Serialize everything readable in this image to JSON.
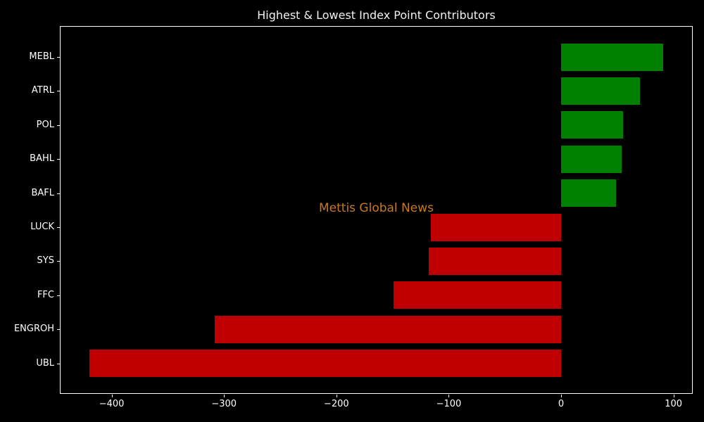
{
  "chart_data": {
    "type": "bar",
    "orientation": "horizontal",
    "title": "Highest & Lowest Index Point Contributors",
    "watermark": "Mettis Global News",
    "categories": [
      "MEBL",
      "ATRL",
      "POL",
      "BAHL",
      "BAFL",
      "LUCK",
      "SYS",
      "FFC",
      "ENGROH",
      "UBL"
    ],
    "values": [
      91,
      70,
      55,
      54,
      49,
      -116,
      -118,
      -149,
      -308,
      -420
    ],
    "x_tick_values": [
      -400,
      -300,
      -200,
      -100,
      0,
      100
    ],
    "x_tick_labels": [
      "−400",
      "−300",
      "−200",
      "−100",
      "0",
      "100"
    ],
    "xlim": [
      -445.5,
      116.5
    ],
    "xlabel": "",
    "ylabel": "",
    "grid": false,
    "legend": null,
    "colors": {
      "positive_bar": "#008000",
      "negative_bar": "#c00000",
      "background": "#000000",
      "axes_frame": "#ffffff",
      "tick_text": "#ffffff",
      "title_text": "#f2f2f2",
      "watermark_text": "#c8781e"
    }
  }
}
